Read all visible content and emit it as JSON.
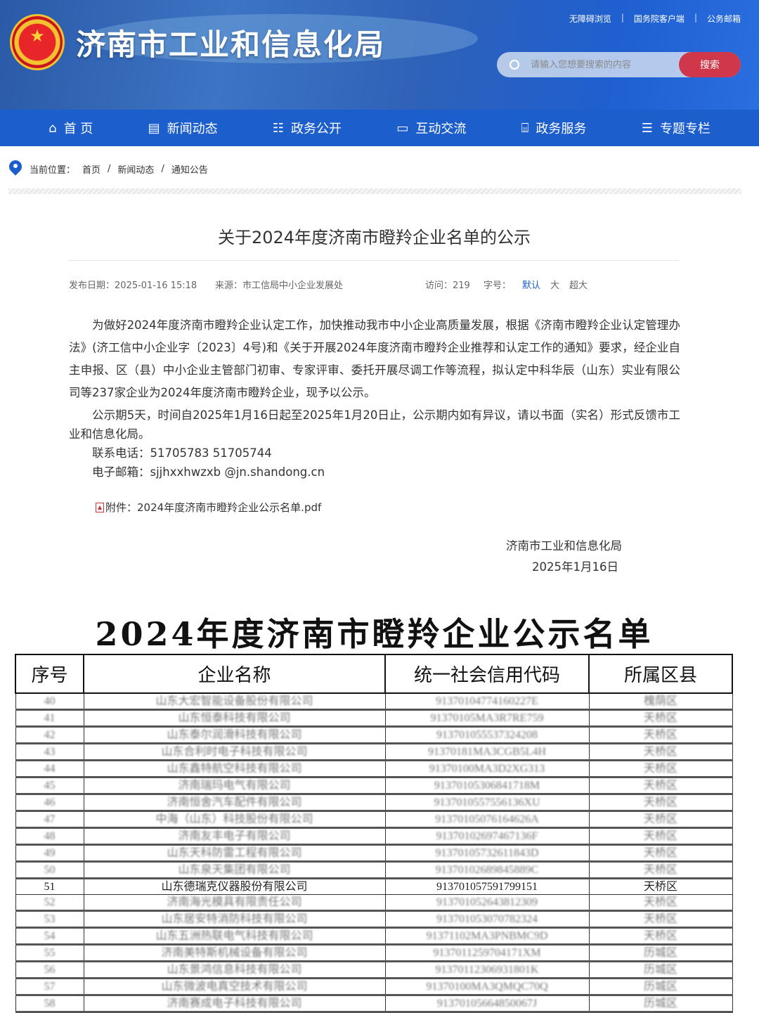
{
  "header": {
    "site_title": "济南市工业和信息化局",
    "top_links": [
      "无障碍浏览",
      "国务院客户端",
      "公务邮箱"
    ],
    "search_placeholder": "请输入您想要搜索的内容",
    "search_button": "搜索"
  },
  "nav": [
    {
      "label": "首 页",
      "icon": "home-icon",
      "glyph": "⌂"
    },
    {
      "label": "新闻动态",
      "icon": "news-icon",
      "glyph": "▤"
    },
    {
      "label": "政务公开",
      "icon": "people-icon",
      "glyph": "☷"
    },
    {
      "label": "互动交流",
      "icon": "chat-icon",
      "glyph": "▭"
    },
    {
      "label": "政务服务",
      "icon": "bank-icon",
      "glyph": "⌸"
    },
    {
      "label": "专题专栏",
      "icon": "document-icon",
      "glyph": "☰"
    }
  ],
  "breadcrumb": {
    "label": "当前位置：",
    "items": [
      "首页",
      "新闻动态",
      "通知公告"
    ],
    "sep": "/"
  },
  "article": {
    "title": "关于2024年度济南市瞪羚企业名单的公示",
    "meta": {
      "date": "发布日期：2025-01-16 15:18",
      "source": "来源：市工信局中小企业发展处",
      "visits": "访问：219",
      "font_label": "字号：",
      "font_default": "默认",
      "font_large": "大",
      "font_xlarge": "超大"
    },
    "paragraphs": [
      "为做好2024年度济南市瞪羚企业认定工作，加快推动我市中小企业高质量发展，根据《济南市瞪羚企业认定管理办法》(济工信中小企业字〔2023〕4号)和《关于开展2024年度济南市瞪羚企业推荐和认定工作的通知》要求，经企业自主申报、区（县）中小企业主管部门初审、专家评审、委托开展尽调工作等流程，拟认定中科华辰（山东）实业有限公司等237家企业为2024年度济南市瞪羚企业，现予以公示。",
      "公示期5天，时间自2025年1月16日起至2025年1月20日止，公示期内如有异议，请以书面（实名）形式反馈市工业和信息化局。"
    ],
    "phone": "联系电话：51705783 51705744",
    "email": "电子邮箱：sjjhxxhwzxb @jn.shandong.cn",
    "attachment": "附件：2024年度济南市瞪羚企业公示名单.pdf",
    "signer": "济南市工业和信息化局",
    "sign_date": "2025年1月16日"
  },
  "list": {
    "title": "2024年度济南市瞪羚企业公示名单",
    "headers": [
      "序号",
      "企业名称",
      "统一社会信用代码",
      "所属区县"
    ],
    "highlight_no": "51",
    "rows": [
      [
        "40",
        "山东大宏智能设备股份有限公司",
        "91370104774160227E",
        "槐荫区"
      ],
      [
        "41",
        "山东恒泰科技有限公司",
        "91370105MA3R7RE759",
        "天桥区"
      ],
      [
        "42",
        "山东泰尔润滑科技有限公司",
        "913701055537324208",
        "天桥区"
      ],
      [
        "43",
        "山东合利时电子科技有限公司",
        "91370181MA3CGB5L4H",
        "天桥区"
      ],
      [
        "44",
        "山东鑫特航空科技有限公司",
        "91370100MA3D2XG313",
        "天桥区"
      ],
      [
        "45",
        "济南瑞玛电气有限公司",
        "91370105306841718M",
        "天桥区"
      ],
      [
        "46",
        "济南恒舍汽车配件有限公司",
        "9137010557556136XU",
        "天桥区"
      ],
      [
        "47",
        "中海（山东）科技股份有限公司",
        "91370105076164626A",
        "天桥区"
      ],
      [
        "48",
        "济南友丰电子有限公司",
        "91370102697467136F",
        "天桥区"
      ],
      [
        "49",
        "山东天科防雷工程有限公司",
        "91370105732611843D",
        "天桥区"
      ],
      [
        "50",
        "山东泉天集团有限公司",
        "91370102689845889C",
        "天桥区"
      ],
      [
        "51",
        "山东德瑞克仪器股份有限公司",
        "913701057591799151",
        "天桥区"
      ],
      [
        "52",
        "济南海光模具有限责任公司",
        "913701052643812309",
        "天桥区"
      ],
      [
        "53",
        "山东居安特消防科技有限公司",
        "913701053070782324",
        "天桥区"
      ],
      [
        "54",
        "山东五洲热联电气科技有限公司",
        "91371102MA3PNBMC9D",
        "天桥区"
      ],
      [
        "55",
        "济南美特斯机械设备有限公司",
        "9137011259704171XM",
        "历城区"
      ],
      [
        "56",
        "山东景鸿信息科技有限公司",
        "91370112306931801K",
        "历城区"
      ],
      [
        "57",
        "山东微波电真空技术有限公司",
        "91370100MA3QMQC70Q",
        "历城区"
      ],
      [
        "58",
        "济南赛成电子科技有限公司",
        "91370105664850067J",
        "历城区"
      ]
    ]
  },
  "colors": {
    "nav": "#1c5fcc",
    "search_button": "#d0374a"
  }
}
